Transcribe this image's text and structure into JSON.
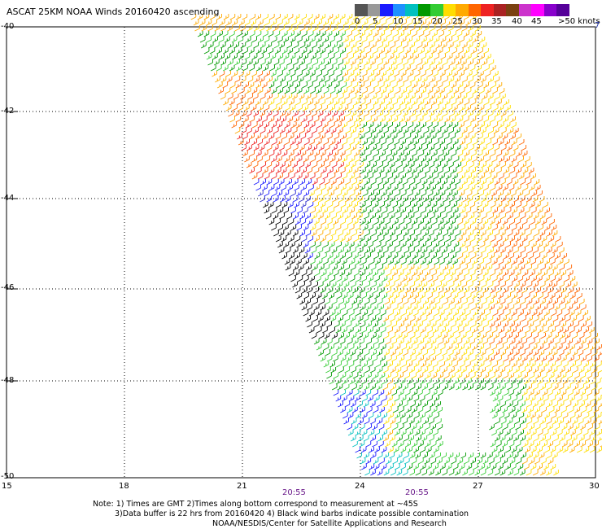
{
  "title": "ASCAT 25KM NOAA Winds 20160420 ascending",
  "legend": {
    "colors": [
      "#555555",
      "#999999",
      "#1a1aff",
      "#1e90ff",
      "#00c0c0",
      "#009900",
      "#33cc33",
      "#ffdd00",
      "#ffaa00",
      "#ff6600",
      "#ee2222",
      "#aa2222",
      "#7a4010",
      "#cc33cc",
      "#ff00ff",
      "#8800cc",
      "#550099"
    ],
    "labels": [
      "0",
      "5",
      "10",
      "15",
      "20",
      "25",
      "30",
      "35",
      "40",
      "45",
      ">50 knots"
    ]
  },
  "lat_labels": [
    "-40",
    "-42",
    "-44",
    "-46",
    "-48",
    "-50"
  ],
  "lon_labels": [
    "15",
    "18",
    "21",
    "24",
    "27",
    "30"
  ],
  "time_labels": [
    "20:55",
    "20:55"
  ],
  "notes": [
    "Note: 1) Times are GMT 2)Times along bottom correspond to measurement at ~45S",
    "3)Data buffer is 22 hrs from 20160420 4) Black wind barbs indicate possible contamination",
    "NOAA/NESDIS/Center for Satellite Applications and Research"
  ],
  "corner_mark": "7",
  "map": {
    "lat_range": [
      -40,
      -50
    ],
    "lon_range": [
      15,
      30
    ],
    "gridlines": "dotted"
  }
}
